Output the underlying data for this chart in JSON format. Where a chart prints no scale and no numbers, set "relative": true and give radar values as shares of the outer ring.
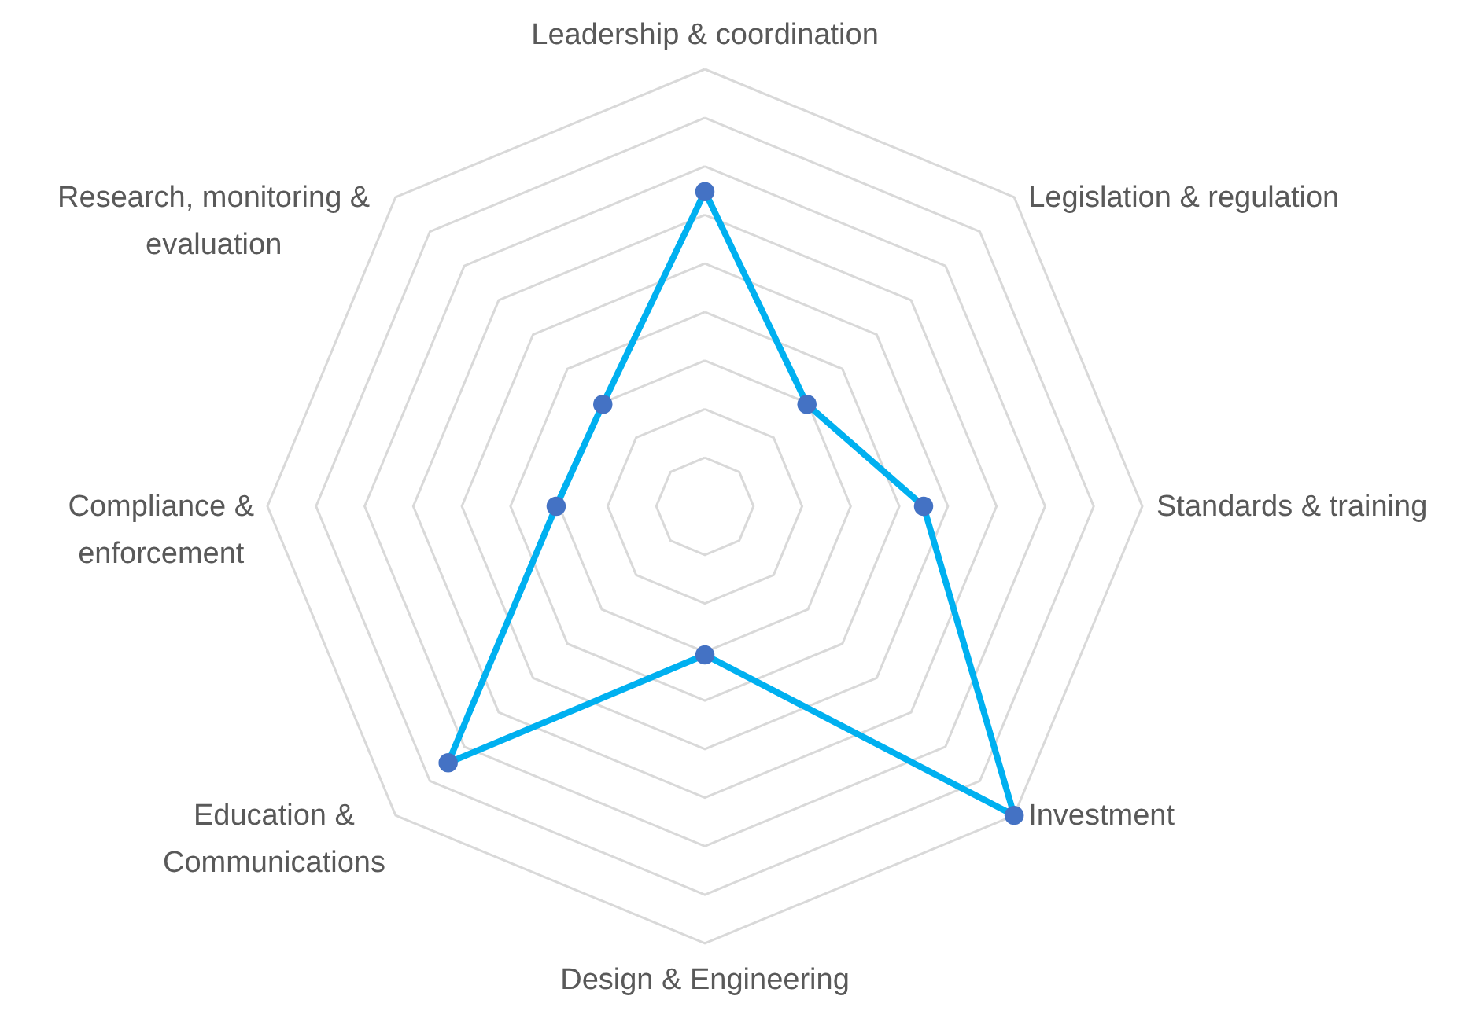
{
  "chart_data": {
    "type": "radar",
    "relative": true,
    "grid": true,
    "marker": "circle",
    "line_style": "solid",
    "categories": [
      "Leadership & coordination",
      "Legislation & regulation",
      "Standards & training",
      "Investment",
      "Design & Engineering",
      "Education & Communications",
      "Compliance & enforcement",
      "Research, monitoring & evaluation"
    ],
    "series": [
      {
        "color": "#00b0f0",
        "values": [
          0.72,
          0.33,
          0.5,
          1.0,
          0.34,
          0.83,
          0.34,
          0.33
        ]
      }
    ]
  }
}
